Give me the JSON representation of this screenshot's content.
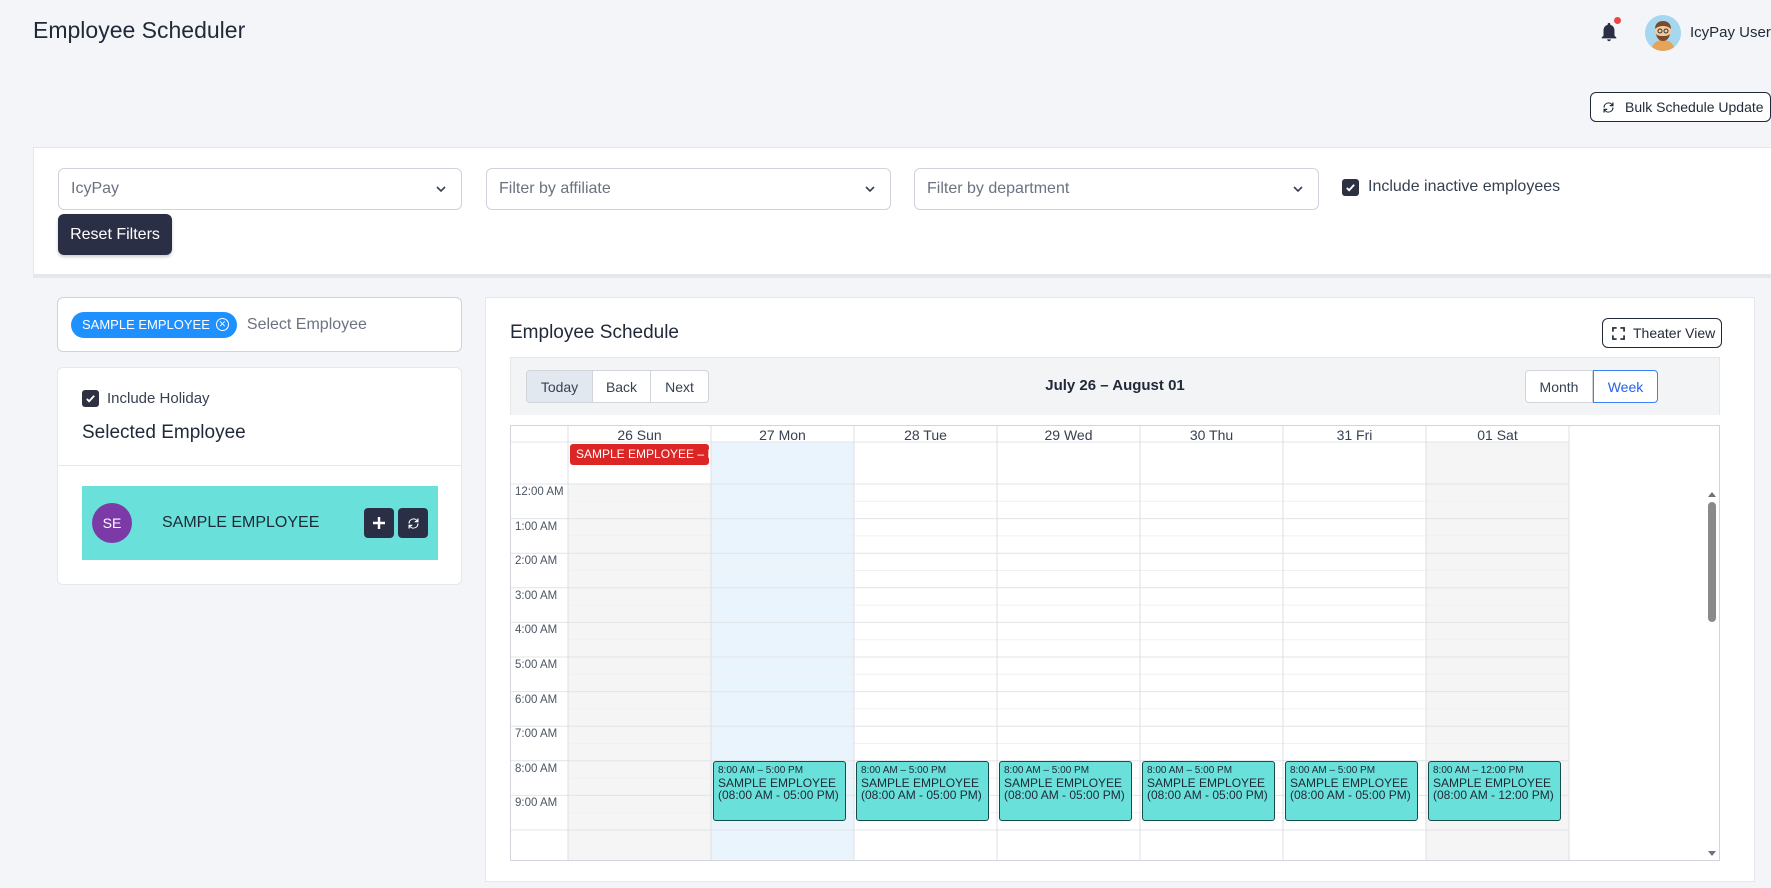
{
  "header": {
    "title": "Employee Scheduler",
    "user_name": "IcyPay User"
  },
  "actions": {
    "bulk_update_label": "Bulk Schedule Update"
  },
  "filters": {
    "company_value": "IcyPay",
    "affiliate_placeholder": "Filter by affiliate",
    "department_placeholder": "Filter by department",
    "include_inactive_label": "Include inactive employees",
    "include_inactive_checked": true,
    "reset_label": "Reset Filters"
  },
  "employee_select": {
    "chip_label": "SAMPLE EMPLOYEE",
    "placeholder": "Select Employee"
  },
  "selected_panel": {
    "include_holiday_label": "Include Holiday",
    "include_holiday_checked": true,
    "title": "Selected Employee",
    "employee": {
      "initials": "SE",
      "name": "SAMPLE EMPLOYEE"
    }
  },
  "schedule": {
    "title": "Employee Schedule",
    "theater_view_label": "Theater View",
    "toolbar": {
      "today": "Today",
      "back": "Back",
      "next": "Next",
      "range": "July 26 – August 01",
      "month": "Month",
      "week": "Week",
      "active_view": "Week"
    },
    "days": [
      "26 Sun",
      "27 Mon",
      "28 Tue",
      "29 Wed",
      "30 Thu",
      "31 Fri",
      "01 Sat"
    ],
    "times": [
      "12:00 AM",
      "1:00 AM",
      "2:00 AM",
      "3:00 AM",
      "4:00 AM",
      "5:00 AM",
      "6:00 AM",
      "7:00 AM",
      "8:00 AM",
      "9:00 AM"
    ],
    "allday_events": [
      {
        "day": 0,
        "label": "SAMPLE EMPLOYEE – Res..."
      }
    ],
    "events": [
      {
        "day": 1,
        "time": "8:00 AM – 5:00 PM",
        "title": "SAMPLE EMPLOYEE",
        "sub": "(08:00 AM - 05:00 PM)"
      },
      {
        "day": 2,
        "time": "8:00 AM – 5:00 PM",
        "title": "SAMPLE EMPLOYEE",
        "sub": "(08:00 AM - 05:00 PM)"
      },
      {
        "day": 3,
        "time": "8:00 AM – 5:00 PM",
        "title": "SAMPLE EMPLOYEE",
        "sub": "(08:00 AM - 05:00 PM)"
      },
      {
        "day": 4,
        "time": "8:00 AM – 5:00 PM",
        "title": "SAMPLE EMPLOYEE",
        "sub": "(08:00 AM - 05:00 PM)"
      },
      {
        "day": 5,
        "time": "8:00 AM – 5:00 PM",
        "title": "SAMPLE EMPLOYEE",
        "sub": "(08:00 AM - 05:00 PM)"
      },
      {
        "day": 6,
        "time": "8:00 AM – 12:00 PM",
        "title": "SAMPLE EMPLOYEE",
        "sub": "(08:00 AM - 12:00 PM)"
      }
    ],
    "today_index": 1
  },
  "colors": {
    "accent_dark": "#2b2f45",
    "chip_blue": "#1e90ff",
    "event_teal": "#69e0d9",
    "allday_red": "#dc2626",
    "today_tint": "#eaf4fd",
    "avatar_purple": "#7b3aa5"
  },
  "icons": {
    "bell": "bell-icon",
    "refresh": "refresh-icon",
    "chevron": "chevron-down-icon",
    "check": "check-icon",
    "close": "close-circle-icon",
    "plus": "plus-icon",
    "expand": "expand-icon"
  }
}
